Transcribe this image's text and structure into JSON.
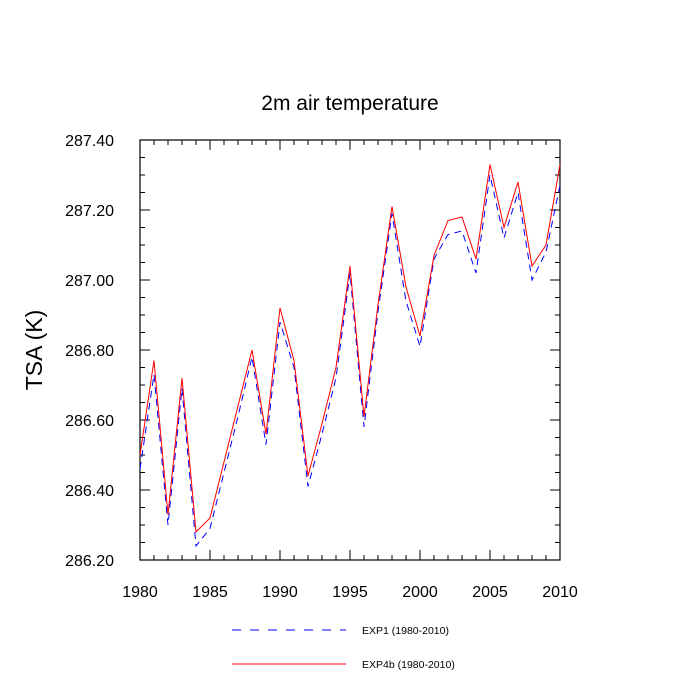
{
  "chart_data": {
    "type": "line",
    "title": "2m air temperature",
    "ylabel": "TSA  (K)",
    "xlabel": "",
    "xlim": [
      1980,
      2010
    ],
    "ylim": [
      286.2,
      287.4
    ],
    "x_ticks": [
      1980,
      1985,
      1990,
      1995,
      2000,
      2005,
      2010
    ],
    "y_ticks": [
      "286.20",
      "286.40",
      "286.60",
      "286.80",
      "287.00",
      "287.20",
      "287.40"
    ],
    "grid": false,
    "legend_position": "bottom",
    "x": [
      1980,
      1981,
      1982,
      1983,
      1984,
      1985,
      1986,
      1987,
      1988,
      1989,
      1990,
      1991,
      1992,
      1993,
      1994,
      1995,
      1996,
      1997,
      1998,
      1999,
      2000,
      2001,
      2002,
      2003,
      2004,
      2005,
      2006,
      2007,
      2008,
      2009,
      2010
    ],
    "series": [
      {
        "name": "EXP1 (1980-2010)",
        "color": "#0000ff",
        "style": "dashed",
        "values": [
          286.46,
          286.73,
          286.3,
          286.69,
          286.24,
          286.29,
          286.45,
          286.61,
          286.78,
          286.53,
          286.88,
          286.75,
          286.41,
          286.56,
          286.72,
          287.02,
          286.58,
          286.91,
          287.19,
          286.94,
          286.81,
          287.06,
          287.13,
          287.14,
          287.02,
          287.3,
          287.12,
          287.25,
          287.0,
          287.08,
          287.27
        ]
      },
      {
        "name": "EXP4b (1980-2010)",
        "color": "#ff0000",
        "style": "solid",
        "values": [
          286.5,
          286.77,
          286.33,
          286.72,
          286.28,
          286.32,
          286.48,
          286.64,
          286.8,
          286.56,
          286.92,
          286.77,
          286.44,
          286.59,
          286.75,
          287.04,
          286.61,
          286.93,
          287.21,
          286.98,
          286.84,
          287.07,
          287.17,
          287.18,
          287.06,
          287.33,
          287.15,
          287.28,
          287.04,
          287.1,
          287.33
        ]
      }
    ]
  }
}
